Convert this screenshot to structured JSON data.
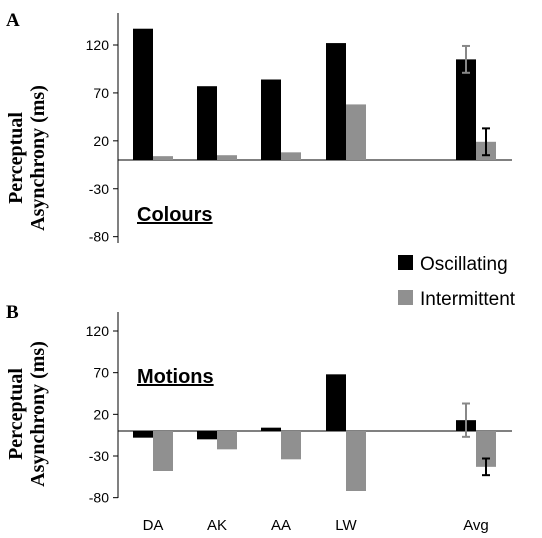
{
  "chart_data": [
    {
      "panel": "A",
      "type": "bar",
      "title": "Colours",
      "ylabel": [
        "Perceptual",
        "Asynchrony (ms)"
      ],
      "ylim": [
        -80,
        150
      ],
      "yticks": [
        120,
        70,
        20,
        -30,
        -80
      ],
      "categories": [
        "DA",
        "AK",
        "AA",
        "LW",
        "",
        "Avg"
      ],
      "series": [
        {
          "name": "Oscillating",
          "color": "#000000",
          "values": [
            137,
            77,
            84,
            122,
            null,
            105
          ],
          "errors": [
            null,
            null,
            null,
            null,
            null,
            14
          ]
        },
        {
          "name": "Intermittent",
          "color": "#909090",
          "values": [
            4,
            5,
            8,
            58,
            null,
            19
          ],
          "errors": [
            null,
            null,
            null,
            null,
            null,
            14
          ]
        }
      ]
    },
    {
      "panel": "B",
      "type": "bar",
      "title": "Motions",
      "ylabel": [
        "Perceptual",
        "Asynchrony (ms)"
      ],
      "ylim": [
        -80,
        150
      ],
      "yticks": [
        120,
        70,
        20,
        -30,
        -80
      ],
      "categories": [
        "DA",
        "AK",
        "AA",
        "LW",
        "",
        "Avg"
      ],
      "series": [
        {
          "name": "Oscillating",
          "color": "#000000",
          "values": [
            -8,
            -10,
            4,
            68,
            null,
            13
          ],
          "errors": [
            null,
            null,
            null,
            null,
            null,
            20
          ]
        },
        {
          "name": "Intermittent",
          "color": "#909090",
          "values": [
            -48,
            -22,
            -34,
            -72,
            null,
            -43
          ],
          "errors": [
            null,
            null,
            null,
            null,
            null,
            10
          ]
        }
      ]
    }
  ],
  "legend": {
    "items": [
      {
        "label": "Oscillating",
        "color": "#000000"
      },
      {
        "label": "Intermittent",
        "color": "#909090"
      }
    ]
  }
}
